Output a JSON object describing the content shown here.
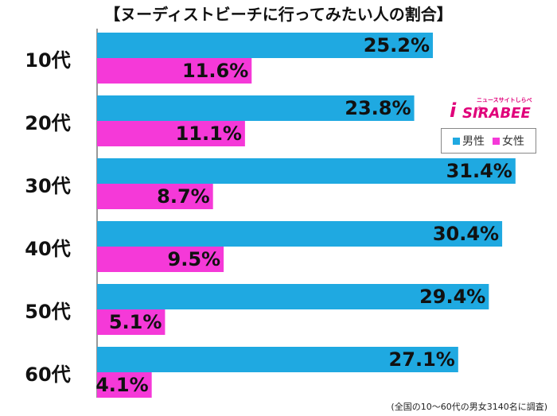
{
  "title": "【ヌーディストビーチに行ってみたい人の割合】",
  "footnote": "(全国の10〜60代の男女3140名に調査)",
  "logo": {
    "text": "SIRABEE",
    "i": "i",
    "sub": "ニュースサイトしらべぇ"
  },
  "legend": [
    {
      "name": "男性",
      "color": "#1fa9e1"
    },
    {
      "name": "女性",
      "color": "#f539d8"
    }
  ],
  "chart_data": {
    "type": "bar",
    "orientation": "horizontal",
    "categories": [
      "10代",
      "20代",
      "30代",
      "40代",
      "50代",
      "60代"
    ],
    "series": [
      {
        "name": "男性",
        "color": "#1fa9e1",
        "values": [
          25.2,
          23.8,
          31.4,
          30.4,
          29.4,
          27.1
        ]
      },
      {
        "name": "女性",
        "color": "#f539d8",
        "values": [
          11.6,
          11.1,
          8.7,
          9.5,
          5.1,
          4.1
        ]
      }
    ],
    "value_format": "%",
    "xlim": [
      0,
      33.5
    ]
  }
}
